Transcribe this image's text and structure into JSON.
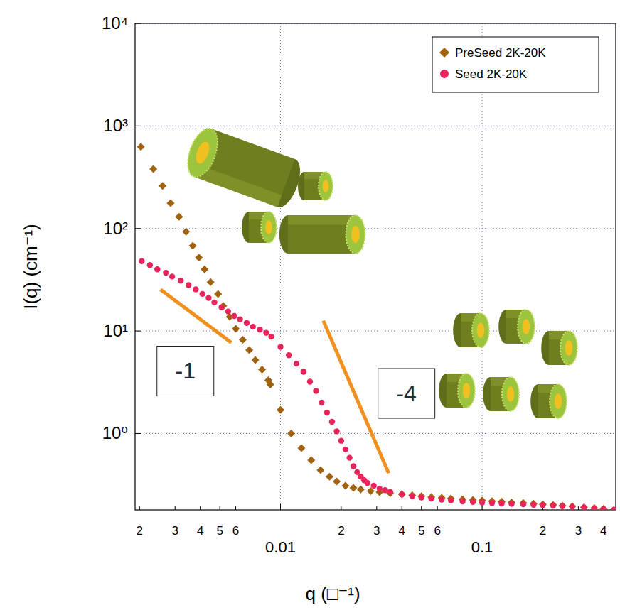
{
  "chart_data": {
    "type": "scatter",
    "log": true,
    "grid": true,
    "legend": "upper right",
    "x_label": "q (□⁻¹)",
    "y_label": "I(q) (cm⁻¹)",
    "xlim": [
      0.0019,
      0.46
    ],
    "ylim": [
      0.18,
      10000
    ],
    "xticks": [
      {
        "value": 0.002,
        "label": "2"
      },
      {
        "value": 0.003,
        "label": "3"
      },
      {
        "value": 0.004,
        "label": "4"
      },
      {
        "value": 0.005,
        "label": "5"
      },
      {
        "value": 0.006,
        "label": "6"
      },
      0.01,
      {
        "value": 0.02,
        "label": "2"
      },
      {
        "value": 0.03,
        "label": "3"
      },
      {
        "value": 0.04,
        "label": "4"
      },
      {
        "value": 0.05,
        "label": "5"
      },
      {
        "value": 0.06,
        "label": "6"
      },
      0.1,
      {
        "value": 0.2,
        "label": "2"
      },
      {
        "value": 0.3,
        "label": "3"
      },
      {
        "value": 0.4,
        "label": "4"
      }
    ],
    "yticks": [
      {
        "value": 1,
        "label": "10⁰"
      },
      {
        "value": 10,
        "label": "10¹"
      },
      {
        "value": 100,
        "label": "10²"
      },
      {
        "value": 1000,
        "label": "10³"
      },
      {
        "value": 10000,
        "label": "10⁴"
      }
    ],
    "series": [
      {
        "name": "PreSeed 2K-20K",
        "color": "#a0620e",
        "marker": "diamond",
        "x": [
          0.00203,
          0.00234,
          0.0026,
          0.00285,
          0.00314,
          0.0034,
          0.00367,
          0.00394,
          0.0042,
          0.0045,
          0.0049,
          0.0052,
          0.0056,
          0.006,
          0.0065,
          0.007,
          0.0075,
          0.0081,
          0.0087,
          0.0089,
          0.01,
          0.0113,
          0.0127,
          0.0142,
          0.0158,
          0.0175,
          0.019,
          0.021,
          0.023,
          0.025,
          0.028,
          0.031,
          0.035,
          0.04,
          0.045,
          0.05,
          0.056,
          0.063,
          0.07,
          0.08,
          0.09,
          0.1,
          0.112,
          0.125,
          0.14,
          0.16,
          0.18,
          0.2,
          0.225,
          0.25,
          0.28,
          0.32,
          0.36,
          0.4,
          0.45
        ],
        "values": [
          625,
          380,
          260,
          177,
          130,
          93,
          68,
          52,
          40,
          30,
          23,
          17.6,
          13.7,
          10.5,
          8.2,
          6.5,
          5.2,
          4.2,
          3.3,
          3.0,
          1.7,
          1.0,
          0.72,
          0.55,
          0.44,
          0.38,
          0.34,
          0.31,
          0.295,
          0.285,
          0.275,
          0.268,
          0.262,
          0.256,
          0.25,
          0.245,
          0.24,
          0.236,
          0.232,
          0.228,
          0.225,
          0.222,
          0.219,
          0.216,
          0.213,
          0.21,
          0.207,
          0.204,
          0.201,
          0.198,
          0.195,
          0.191,
          0.187,
          0.184,
          0.18
        ]
      },
      {
        "name": "Seed 2K-20K",
        "color": "#e8245a",
        "marker": "circle",
        "x": [
          0.00205,
          0.00225,
          0.00245,
          0.0027,
          0.0029,
          0.0032,
          0.0035,
          0.0038,
          0.0041,
          0.0044,
          0.0047,
          0.0051,
          0.0055,
          0.0059,
          0.0063,
          0.0068,
          0.0073,
          0.0079,
          0.0085,
          0.009,
          0.01,
          0.011,
          0.012,
          0.013,
          0.014,
          0.015,
          0.016,
          0.017,
          0.018,
          0.019,
          0.02,
          0.021,
          0.022,
          0.023,
          0.024,
          0.025,
          0.026,
          0.027,
          0.029,
          0.031,
          0.033,
          0.035,
          0.04,
          0.045,
          0.05,
          0.056,
          0.063,
          0.07,
          0.08,
          0.09,
          0.1,
          0.112,
          0.125,
          0.14,
          0.16,
          0.18,
          0.2,
          0.225,
          0.25,
          0.28,
          0.32,
          0.36,
          0.4,
          0.45
        ],
        "values": [
          48,
          44,
          40,
          37,
          34,
          31,
          28,
          25.5,
          23,
          21,
          19,
          17,
          15.5,
          14,
          13,
          12,
          11,
          10.3,
          9.6,
          8.8,
          7.0,
          5.8,
          4.8,
          4.0,
          3.2,
          2.6,
          2.0,
          1.6,
          1.3,
          1.05,
          0.85,
          0.7,
          0.58,
          0.48,
          0.42,
          0.38,
          0.35,
          0.33,
          0.31,
          0.29,
          0.28,
          0.27,
          0.255,
          0.245,
          0.238,
          0.232,
          0.227,
          0.222,
          0.218,
          0.215,
          0.212,
          0.21,
          0.208,
          0.206,
          0.204,
          0.202,
          0.2,
          0.198,
          0.196,
          0.193,
          0.19,
          0.187,
          0.184,
          0.18
        ]
      }
    ],
    "annotations": [
      {
        "text": "-1",
        "color": "#f0901e",
        "x": [
          0.00254,
          0.0057
        ],
        "y": [
          25.4,
          7.7
        ]
      },
      {
        "text": "-4",
        "color": "#f0901e",
        "x": [
          0.0163,
          0.0344
        ],
        "y": [
          12.6,
          0.41
        ]
      }
    ]
  }
}
